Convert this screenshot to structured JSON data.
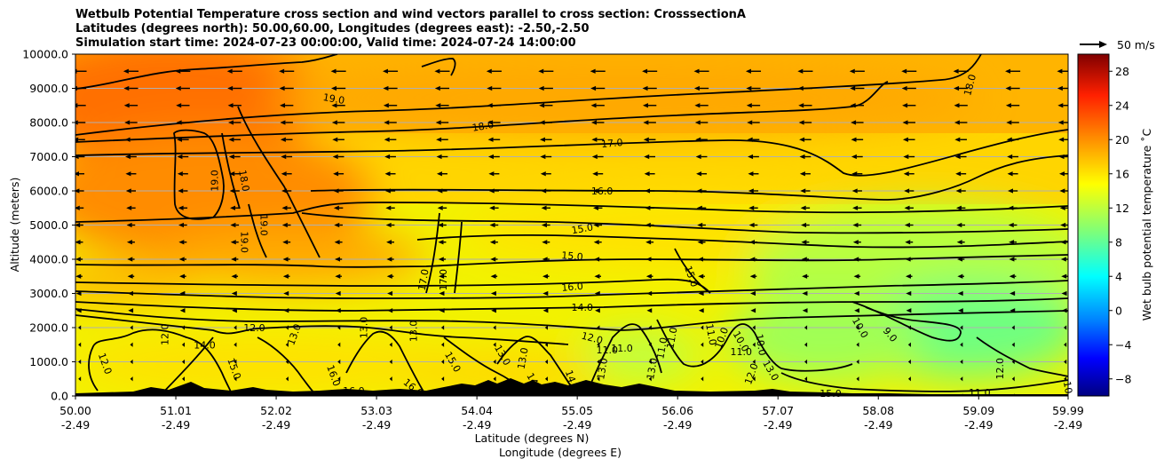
{
  "title_lines": [
    "Wetbulb Potential Temperature cross section and wind vectors parallel to cross section: CrosssectionA",
    "Latitudes (degrees north): 50.00,60.00, Longitudes (degrees east): -2.50,-2.50",
    "Simulation start time: 2024-07-23 00:00:00, Valid time: 2024-07-24 14:00:00"
  ],
  "chart_data": {
    "type": "heatmap",
    "ylabel": "Altitude (meters)",
    "xlabel_lines": [
      "Latitude (degrees N)",
      "Longitude (degrees E)"
    ],
    "colorbar_label": "Wet bulb potential temperature $^\\circ$C",
    "colorbar_label_display": "Wet bulb potential temperature ˚C",
    "colorbar_range": [
      -10,
      30
    ],
    "colorbar_ticks": [
      "−8",
      "−4",
      "0",
      "4",
      "8",
      "12",
      "16",
      "20",
      "24",
      "28"
    ],
    "colorbar_tick_values": [
      -8,
      -4,
      0,
      4,
      8,
      12,
      16,
      20,
      24,
      28
    ],
    "quiver_key": "50 m/s",
    "ylim": [
      0,
      10000
    ],
    "y_ticks": [
      "0.0",
      "1000.0",
      "2000.0",
      "3000.0",
      "4000.0",
      "5000.0",
      "6000.0",
      "7000.0",
      "8000.0",
      "9000.0",
      "10000.0"
    ],
    "y_tick_values": [
      0,
      1000,
      2000,
      3000,
      4000,
      5000,
      6000,
      7000,
      8000,
      9000,
      10000
    ],
    "xlim": [
      50.0,
      59.99
    ],
    "x_ticks_lat": [
      "50.00",
      "51.01",
      "52.02",
      "53.03",
      "54.04",
      "55.05",
      "56.06",
      "57.07",
      "58.08",
      "59.09",
      "59.99"
    ],
    "x_ticks_lon": [
      "-2.49",
      "-2.49",
      "-2.49",
      "-2.49",
      "-2.49",
      "-2.49",
      "-2.49",
      "-2.49",
      "-2.49",
      "-2.49",
      "-2.49"
    ],
    "x_tick_values": [
      50.0,
      51.01,
      52.02,
      53.03,
      54.04,
      55.05,
      56.06,
      57.07,
      58.08,
      59.09,
      59.99
    ],
    "grid": true,
    "contour_labels": [
      {
        "text": "19.0",
        "x": 52.6,
        "y": 8700,
        "rot": 10
      },
      {
        "text": "18.0",
        "x": 54.1,
        "y": 7900,
        "rot": -10
      },
      {
        "text": "18.0",
        "x": 59.0,
        "y": 9100,
        "rot": -75
      },
      {
        "text": "17.0",
        "x": 55.4,
        "y": 7400,
        "rot": -5
      },
      {
        "text": "16.0",
        "x": 55.3,
        "y": 6000,
        "rot": 0
      },
      {
        "text": "15.0",
        "x": 55.1,
        "y": 4900,
        "rot": -10
      },
      {
        "text": "15.0",
        "x": 55.0,
        "y": 4100,
        "rot": 5
      },
      {
        "text": "16.0",
        "x": 55.0,
        "y": 3200,
        "rot": -5
      },
      {
        "text": "14.0",
        "x": 55.1,
        "y": 2600,
        "rot": 0
      },
      {
        "text": "12.0",
        "x": 55.2,
        "y": 1700,
        "rot": 15
      },
      {
        "text": "11.0",
        "x": 55.5,
        "y": 1400,
        "rot": 0
      },
      {
        "text": "15.0",
        "x": 56.2,
        "y": 3500,
        "rot": 70
      },
      {
        "text": "17.0",
        "x": 53.5,
        "y": 3400,
        "rot": -80
      },
      {
        "text": "17.0",
        "x": 53.7,
        "y": 3400,
        "rot": -90
      },
      {
        "text": "19.0",
        "x": 51.4,
        "y": 6300,
        "rot": -90
      },
      {
        "text": "18.0",
        "x": 51.7,
        "y": 6300,
        "rot": 80
      },
      {
        "text": "19.0",
        "x": 51.7,
        "y": 4500,
        "rot": 90
      },
      {
        "text": "19.0",
        "x": 51.9,
        "y": 5000,
        "rot": 90
      },
      {
        "text": "12.0",
        "x": 50.9,
        "y": 1800,
        "rot": -90
      },
      {
        "text": "14.0",
        "x": 51.3,
        "y": 1500,
        "rot": 0
      },
      {
        "text": "12.0",
        "x": 51.8,
        "y": 2000,
        "rot": 0
      },
      {
        "text": "13.0",
        "x": 52.2,
        "y": 1800,
        "rot": -70
      },
      {
        "text": "12.0",
        "x": 50.3,
        "y": 950,
        "rot": 70
      },
      {
        "text": "15.0",
        "x": 51.6,
        "y": 800,
        "rot": 70
      },
      {
        "text": "16.0",
        "x": 52.6,
        "y": 600,
        "rot": 70
      },
      {
        "text": "16.0",
        "x": 52.8,
        "y": 150,
        "rot": 0
      },
      {
        "text": "13.0",
        "x": 52.9,
        "y": 2000,
        "rot": -90
      },
      {
        "text": "13.0",
        "x": 53.4,
        "y": 1900,
        "rot": -90
      },
      {
        "text": "15.0",
        "x": 53.8,
        "y": 1000,
        "rot": 60
      },
      {
        "text": "16.0",
        "x": 53.4,
        "y": 250,
        "rot": 40
      },
      {
        "text": "13.0",
        "x": 54.3,
        "y": 1200,
        "rot": 60
      },
      {
        "text": "13.0",
        "x": 54.5,
        "y": 1100,
        "rot": -80
      },
      {
        "text": "14",
        "x": 54.6,
        "y": 500,
        "rot": 60
      },
      {
        "text": "14.0",
        "x": 55.0,
        "y": 450,
        "rot": 70
      },
      {
        "text": "13.0",
        "x": 55.3,
        "y": 800,
        "rot": -80
      },
      {
        "text": "13.0",
        "x": 55.8,
        "y": 800,
        "rot": -80
      },
      {
        "text": "11.0",
        "x": 55.9,
        "y": 1400,
        "rot": -80
      },
      {
        "text": "11.0",
        "x": 56.0,
        "y": 1700,
        "rot": -80
      },
      {
        "text": "11.0",
        "x": 56.4,
        "y": 1800,
        "rot": 80
      },
      {
        "text": "10.0",
        "x": 56.5,
        "y": 1700,
        "rot": -70
      },
      {
        "text": "10.0",
        "x": 56.7,
        "y": 1600,
        "rot": 60
      },
      {
        "text": "10.0",
        "x": 56.9,
        "y": 1500,
        "rot": 80
      },
      {
        "text": "11.0",
        "x": 56.7,
        "y": 1300,
        "rot": 0
      },
      {
        "text": "12.0",
        "x": 56.8,
        "y": 650,
        "rot": -70
      },
      {
        "text": "13.0",
        "x": 57.0,
        "y": 750,
        "rot": 60
      },
      {
        "text": "15.0",
        "x": 57.6,
        "y": 80,
        "rot": 0
      },
      {
        "text": "10.0",
        "x": 57.9,
        "y": 2000,
        "rot": 60
      },
      {
        "text": "9.0",
        "x": 58.2,
        "y": 1800,
        "rot": 50
      },
      {
        "text": "12.0",
        "x": 59.3,
        "y": 800,
        "rot": -90
      },
      {
        "text": "11.0",
        "x": 59.1,
        "y": 100,
        "rot": 0
      },
      {
        "text": "10",
        "x": 59.99,
        "y": 250,
        "rot": 80
      },
      {
        "text": "11.0",
        "x": 55.35,
        "y": 1350,
        "rot": 0
      }
    ],
    "wind_direction": "right-to-left",
    "field_description_color_regions": [
      {
        "region": "upper-left",
        "temp": 20
      },
      {
        "region": "mid",
        "temp": 16
      },
      {
        "region": "lower-right",
        "temp": 10
      }
    ]
  }
}
